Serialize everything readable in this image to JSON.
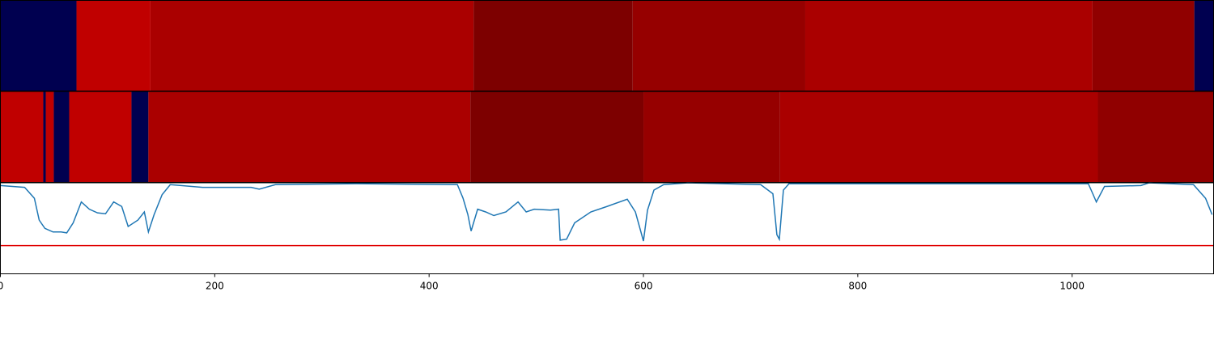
{
  "chart_data": [
    {
      "type": "segments",
      "xlim": [
        0,
        1132
      ],
      "segments": [
        {
          "start": 0,
          "end": 71,
          "color": "#000050"
        },
        {
          "start": 71,
          "end": 140,
          "color": "#c00000"
        },
        {
          "start": 140,
          "end": 441.5,
          "color": "#aa0000"
        },
        {
          "start": 441.5,
          "end": 590,
          "color": "#7d0000"
        },
        {
          "start": 590,
          "end": 751,
          "color": "#960000"
        },
        {
          "start": 751,
          "end": 1019,
          "color": "#aa0000"
        },
        {
          "start": 1019,
          "end": 1114,
          "color": "#900000"
        },
        {
          "start": 1114,
          "end": 1132,
          "color": "#000050"
        }
      ]
    },
    {
      "type": "segments",
      "xlim": [
        0,
        1132
      ],
      "segments": [
        {
          "start": 0,
          "end": 40,
          "color": "#c00000"
        },
        {
          "start": 40,
          "end": 42.3,
          "color": "#000050"
        },
        {
          "start": 42.3,
          "end": 49.8,
          "color": "#c00000"
        },
        {
          "start": 49.8,
          "end": 64.2,
          "color": "#000050"
        },
        {
          "start": 64.2,
          "end": 122.3,
          "color": "#c00000"
        },
        {
          "start": 122.3,
          "end": 138.1,
          "color": "#000050"
        },
        {
          "start": 138.1,
          "end": 438.5,
          "color": "#aa0000"
        },
        {
          "start": 438.5,
          "end": 600,
          "color": "#7d0000"
        },
        {
          "start": 600,
          "end": 727.5,
          "color": "#960000"
        },
        {
          "start": 727.5,
          "end": 1024,
          "color": "#aa0000"
        },
        {
          "start": 1024,
          "end": 1132,
          "color": "#900000"
        }
      ]
    },
    {
      "type": "line",
      "xlim": [
        0,
        1132
      ],
      "ylim": [
        0,
        1
      ],
      "xticks": [
        0,
        200,
        400,
        600,
        800,
        1000
      ],
      "threshold": 0.31,
      "threshold_color": "#e00000",
      "series": [
        {
          "color": "#1f77b4",
          "x": [
            0,
            22.6,
            31.7,
            36.2,
            41.5,
            49.1,
            56.6,
            61.9,
            67.9,
            75.5,
            83.0,
            90.6,
            98.1,
            105.7,
            113.2,
            119.2,
            128.3,
            134.3,
            138.1,
            143.4,
            150.9,
            158.5,
            188.7,
            234.0,
            241.5,
            256.6,
            332.1,
            426.4,
            431.7,
            436.2,
            439.2,
            445.3,
            452.8,
            460.4,
            471.7,
            483.0,
            490.6,
            498.1,
            513.2,
            520.8,
            522.3,
            528.3,
            535.8,
            550.9,
            566.0,
            584.9,
            592.5,
            600.0,
            603.8,
            609.8,
            618.9,
            641.5,
            709.4,
            720.8,
            724.5,
            726.8,
            730.6,
            735.8,
            1015.1,
            1018.9,
            1022.6,
            1030.2,
            1064.2,
            1071.7,
            1113.2,
            1124.5,
            1130.6
          ],
          "values": [
            0.97,
            0.95,
            0.83,
            0.59,
            0.5,
            0.46,
            0.46,
            0.45,
            0.56,
            0.79,
            0.71,
            0.67,
            0.66,
            0.79,
            0.74,
            0.52,
            0.59,
            0.68,
            0.46,
            0.65,
            0.87,
            0.98,
            0.95,
            0.95,
            0.93,
            0.98,
            0.99,
            0.98,
            0.83,
            0.65,
            0.47,
            0.71,
            0.68,
            0.64,
            0.68,
            0.79,
            0.68,
            0.71,
            0.7,
            0.71,
            0.37,
            0.38,
            0.56,
            0.68,
            0.74,
            0.82,
            0.68,
            0.36,
            0.7,
            0.92,
            0.98,
            1.0,
            0.98,
            0.88,
            0.43,
            0.38,
            0.92,
            0.99,
            0.99,
            0.89,
            0.79,
            0.96,
            0.97,
            1.0,
            0.98,
            0.83,
            0.65
          ]
        }
      ]
    }
  ]
}
